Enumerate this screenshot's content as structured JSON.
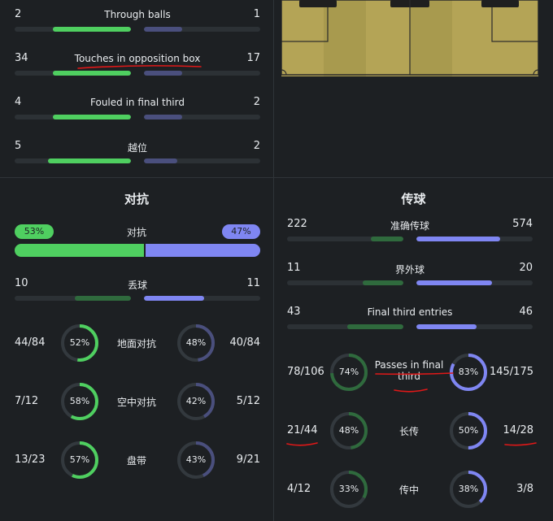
{
  "colors": {
    "home": "#4fcf60",
    "home_dim": "#2f6a3d",
    "away": "#7f86f2",
    "away_dim": "#4a4f7d",
    "track": "#2c3135",
    "annotation": "#e01818"
  },
  "attack": {
    "rows": [
      {
        "home": "2",
        "label": "Through balls",
        "away": "1",
        "home_frac": 0.67,
        "away_frac": 0.33
      },
      {
        "home": "34",
        "label": "Touches in opposition box",
        "away": "17",
        "home_frac": 0.67,
        "away_frac": 0.33
      },
      {
        "home": "4",
        "label": "Fouled in final third",
        "away": "2",
        "home_frac": 0.67,
        "away_frac": 0.33
      },
      {
        "home": "5",
        "label": "越位",
        "away": "2",
        "home_frac": 0.71,
        "away_frac": 0.29
      }
    ]
  },
  "duels": {
    "title": "对抗",
    "overall": {
      "label": "对抗",
      "home_pct": "53%",
      "away_pct": "47%",
      "home_frac": 0.53
    },
    "lost": {
      "home": "10",
      "label": "丢球",
      "away": "11",
      "home_frac": 0.48,
      "away_frac": 0.52
    },
    "rings": [
      {
        "home": "44/84",
        "home_pct": "52%",
        "home_frac": 0.52,
        "label": "地面对抗",
        "away_pct": "48%",
        "away_frac": 0.48,
        "away": "40/84"
      },
      {
        "home": "7/12",
        "home_pct": "58%",
        "home_frac": 0.58,
        "label": "空中对抗",
        "away_pct": "42%",
        "away_frac": 0.42,
        "away": "5/12"
      },
      {
        "home": "13/23",
        "home_pct": "57%",
        "home_frac": 0.57,
        "label": "盘带",
        "away_pct": "43%",
        "away_frac": 0.43,
        "away": "9/21"
      }
    ]
  },
  "passes": {
    "title": "传球",
    "rows": [
      {
        "home": "222",
        "label": "准确传球",
        "away": "574",
        "home_frac": 0.28,
        "away_frac": 0.72
      },
      {
        "home": "11",
        "label": "界外球",
        "away": "20",
        "home_frac": 0.35,
        "away_frac": 0.65
      },
      {
        "home": "43",
        "label": "Final third entries",
        "away": "46",
        "home_frac": 0.48,
        "away_frac": 0.52
      }
    ],
    "rings": [
      {
        "home": "78/106",
        "home_pct": "74%",
        "home_frac": 0.74,
        "label": "Passes in final third",
        "away_pct": "83%",
        "away_frac": 0.83,
        "away": "145/175"
      },
      {
        "home": "21/44",
        "home_pct": "48%",
        "home_frac": 0.48,
        "label": "长传",
        "away_pct": "50%",
        "away_frac": 0.5,
        "away": "14/28"
      },
      {
        "home": "4/12",
        "home_pct": "33%",
        "home_frac": 0.33,
        "label": "传中",
        "away_pct": "38%",
        "away_frac": 0.38,
        "away": "3/8"
      }
    ]
  }
}
